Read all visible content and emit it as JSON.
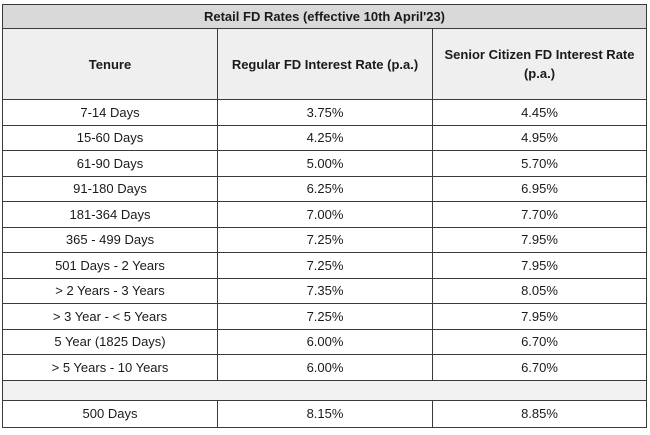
{
  "table": {
    "title": "Retail FD Rates (effective 10th April'23)",
    "headers": {
      "tenure": "Tenure",
      "regular": "Regular FD Interest Rate (p.a.)",
      "senior": "Senior Citizen FD Interest Rate (p.a.)"
    },
    "rows": [
      {
        "tenure": "7-14 Days",
        "regular": "3.75%",
        "senior": "4.45%"
      },
      {
        "tenure": "15-60 Days",
        "regular": "4.25%",
        "senior": "4.95%"
      },
      {
        "tenure": "61-90 Days",
        "regular": "5.00%",
        "senior": "5.70%"
      },
      {
        "tenure": "91-180 Days",
        "regular": "6.25%",
        "senior": "6.95%"
      },
      {
        "tenure": "181-364 Days",
        "regular": "7.00%",
        "senior": "7.70%"
      },
      {
        "tenure": "365 - 499 Days",
        "regular": "7.25%",
        "senior": "7.95%"
      },
      {
        "tenure": "501 Days - 2 Years",
        "regular": "7.25%",
        "senior": "7.95%"
      },
      {
        "tenure": "> 2 Years - 3 Years",
        "regular": "7.35%",
        "senior": "8.05%"
      },
      {
        "tenure": "> 3 Year - < 5 Years",
        "regular": "7.25%",
        "senior": "7.95%"
      },
      {
        "tenure": "5 Year (1825 Days)",
        "regular": "6.00%",
        "senior": "6.70%"
      },
      {
        "tenure": "> 5 Years - 10 Years",
        "regular": "6.00%",
        "senior": "6.70%"
      }
    ],
    "special_row": {
      "tenure": "500 Days",
      "regular": "8.15%",
      "senior": "8.85%"
    }
  }
}
